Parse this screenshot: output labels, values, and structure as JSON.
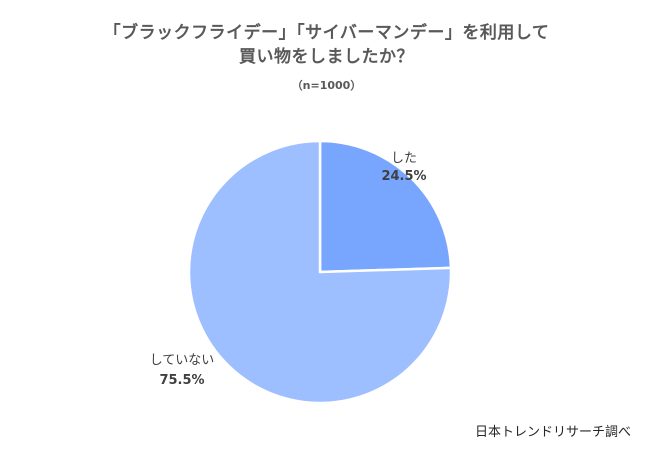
{
  "chart_data": {
    "type": "pie",
    "title_lines": [
      "「ブラックフライデー」「サイバーマンデー」を利用して",
      "買い物をしましたか？"
    ],
    "subtitle": "（n=1000）",
    "slices": [
      {
        "label": "した",
        "value": 24.5,
        "value_label": "24.5%",
        "color": "#78A6FF"
      },
      {
        "label": "していない",
        "value": 75.5,
        "value_label": "75.5%",
        "color": "#9DBEFF"
      }
    ],
    "start_angle_deg": 0,
    "direction": "clockwise"
  },
  "source": "日本トレンドリサーチ調べ"
}
